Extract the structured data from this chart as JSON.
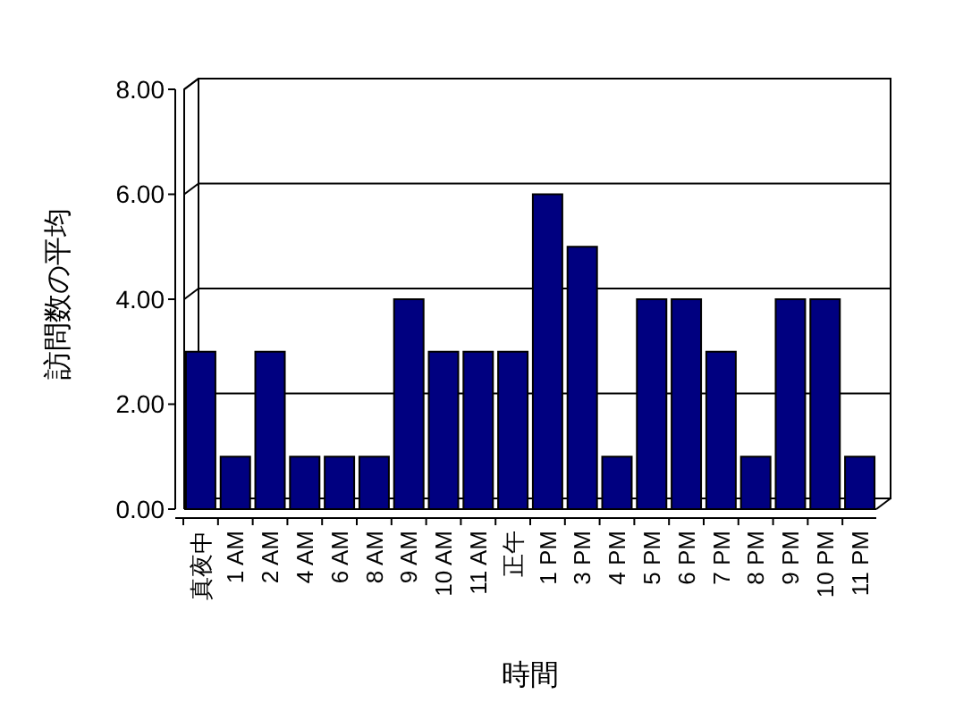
{
  "chart_data": {
    "type": "bar",
    "xlabel": "時間",
    "ylabel": "訪問数の平均",
    "categories": [
      "真夜中",
      "1 AM",
      "2 AM",
      "4 AM",
      "6 AM",
      "8 AM",
      "9 AM",
      "10 AM",
      "11 AM",
      "正午",
      "1 PM",
      "3 PM",
      "4 PM",
      "5 PM",
      "6 PM",
      "7 PM",
      "8 PM",
      "9 PM",
      "10 PM",
      "11 PM"
    ],
    "values": [
      3,
      1,
      3,
      1,
      1,
      1,
      4,
      3,
      3,
      3,
      6,
      5,
      1,
      4,
      4,
      3,
      1,
      4,
      4,
      1
    ],
    "color": "#000080",
    "ylim": [
      0,
      8
    ],
    "yticks": [
      {
        "value": 0,
        "label": "0.00"
      },
      {
        "value": 2,
        "label": "2.00"
      },
      {
        "value": 4,
        "label": "4.00"
      },
      {
        "value": 6,
        "label": "6.00"
      },
      {
        "value": 8,
        "label": "8.00"
      }
    ],
    "grid": "y"
  }
}
